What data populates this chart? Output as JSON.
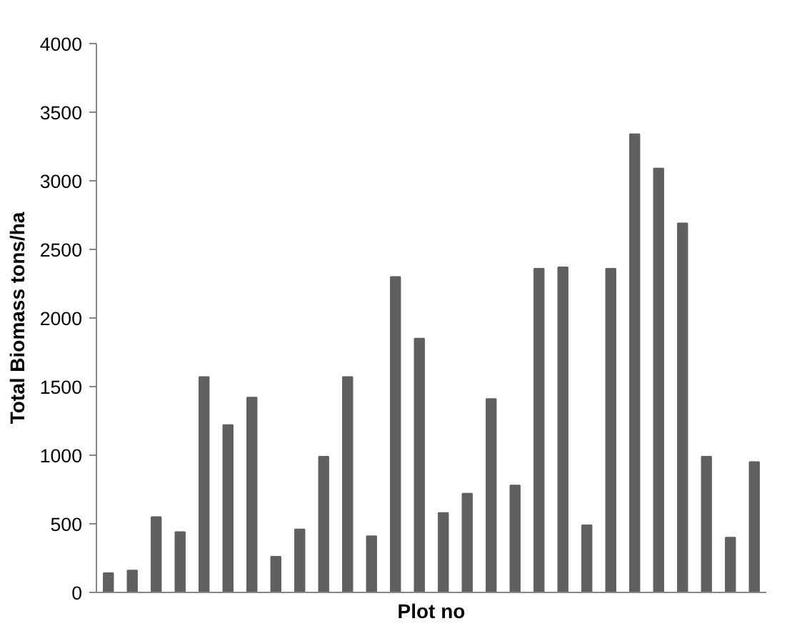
{
  "chart_data": {
    "type": "bar",
    "xlabel": "Plot no",
    "ylabel": "Total Biomass tons/ha",
    "categories": [
      null,
      null,
      null,
      null,
      null,
      null,
      null,
      null,
      null,
      null,
      null,
      null,
      null,
      null,
      null,
      null,
      null,
      null,
      null,
      null,
      null,
      null,
      null,
      null,
      null,
      null,
      null,
      null
    ],
    "values": [
      140,
      160,
      550,
      440,
      1570,
      1220,
      1420,
      260,
      460,
      990,
      1570,
      410,
      2300,
      1850,
      580,
      720,
      1410,
      780,
      2360,
      2370,
      490,
      2360,
      3340,
      3090,
      2690,
      990,
      400,
      950
    ],
    "color": "#606060",
    "ylim": [
      0,
      4000
    ],
    "yticks": [
      0,
      500,
      1000,
      1500,
      2000,
      2500,
      3000,
      3500,
      4000
    ],
    "grid": false
  }
}
